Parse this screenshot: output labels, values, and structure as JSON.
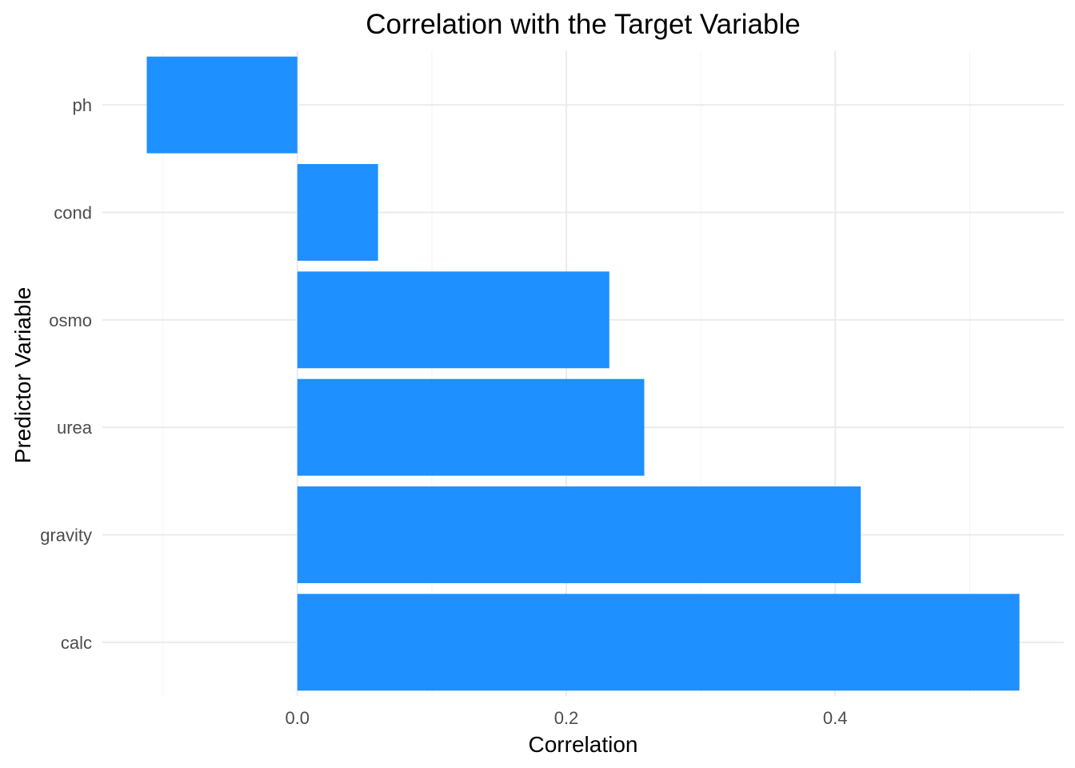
{
  "chart_data": {
    "type": "bar",
    "orientation": "horizontal",
    "title": "Correlation with the Target Variable",
    "xlabel": "Correlation",
    "ylabel": "Predictor Variable",
    "categories": [
      "ph",
      "cond",
      "osmo",
      "urea",
      "gravity",
      "calc"
    ],
    "values": [
      -0.112,
      0.06,
      0.232,
      0.258,
      0.419,
      0.537
    ],
    "xlim": [
      -0.145,
      0.57
    ],
    "xticks": [
      0.0,
      0.2,
      0.4
    ],
    "xtick_labels": [
      "0.0",
      "0.2",
      "0.4"
    ],
    "grid": true,
    "bar_color": "#1E90FF"
  }
}
